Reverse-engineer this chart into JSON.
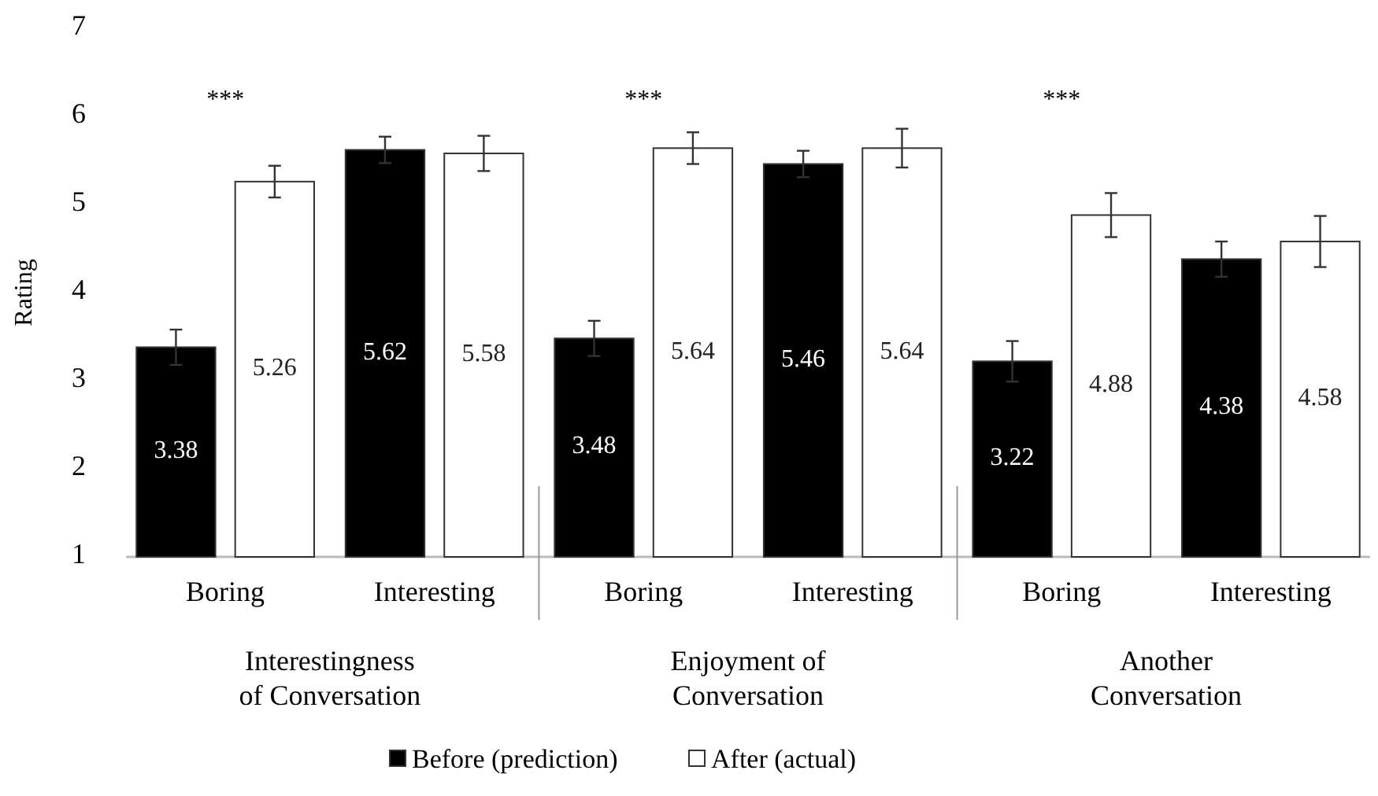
{
  "chart_data": {
    "type": "bar",
    "ylabel": "Rating",
    "categories": [
      "Boring",
      "Interesting",
      "Boring",
      "Interesting",
      "Boring",
      "Interesting"
    ],
    "series": [
      {
        "name": "Before (prediction)",
        "color": "#000000",
        "values": [
          3.38,
          5.62,
          3.48,
          5.46,
          3.22,
          4.38
        ],
        "errors": [
          0.2,
          0.15,
          0.2,
          0.15,
          0.23,
          0.2
        ]
      },
      {
        "name": "After (actual)",
        "color": "#ffffff",
        "values": [
          5.26,
          5.58,
          5.64,
          5.64,
          4.88,
          4.58
        ],
        "errors": [
          0.18,
          0.2,
          0.18,
          0.22,
          0.25,
          0.29
        ]
      }
    ],
    "ylim": [
      1,
      7
    ],
    "yticks": [
      1,
      2,
      3,
      4,
      5,
      6,
      7
    ],
    "grid": false,
    "legend": "bottom",
    "data_labels": true,
    "annotations": [
      "***",
      "Interestingness\nof Conversation",
      "***",
      "Enjoyment of\nConversation",
      "***",
      "Another\nConversation"
    ]
  }
}
